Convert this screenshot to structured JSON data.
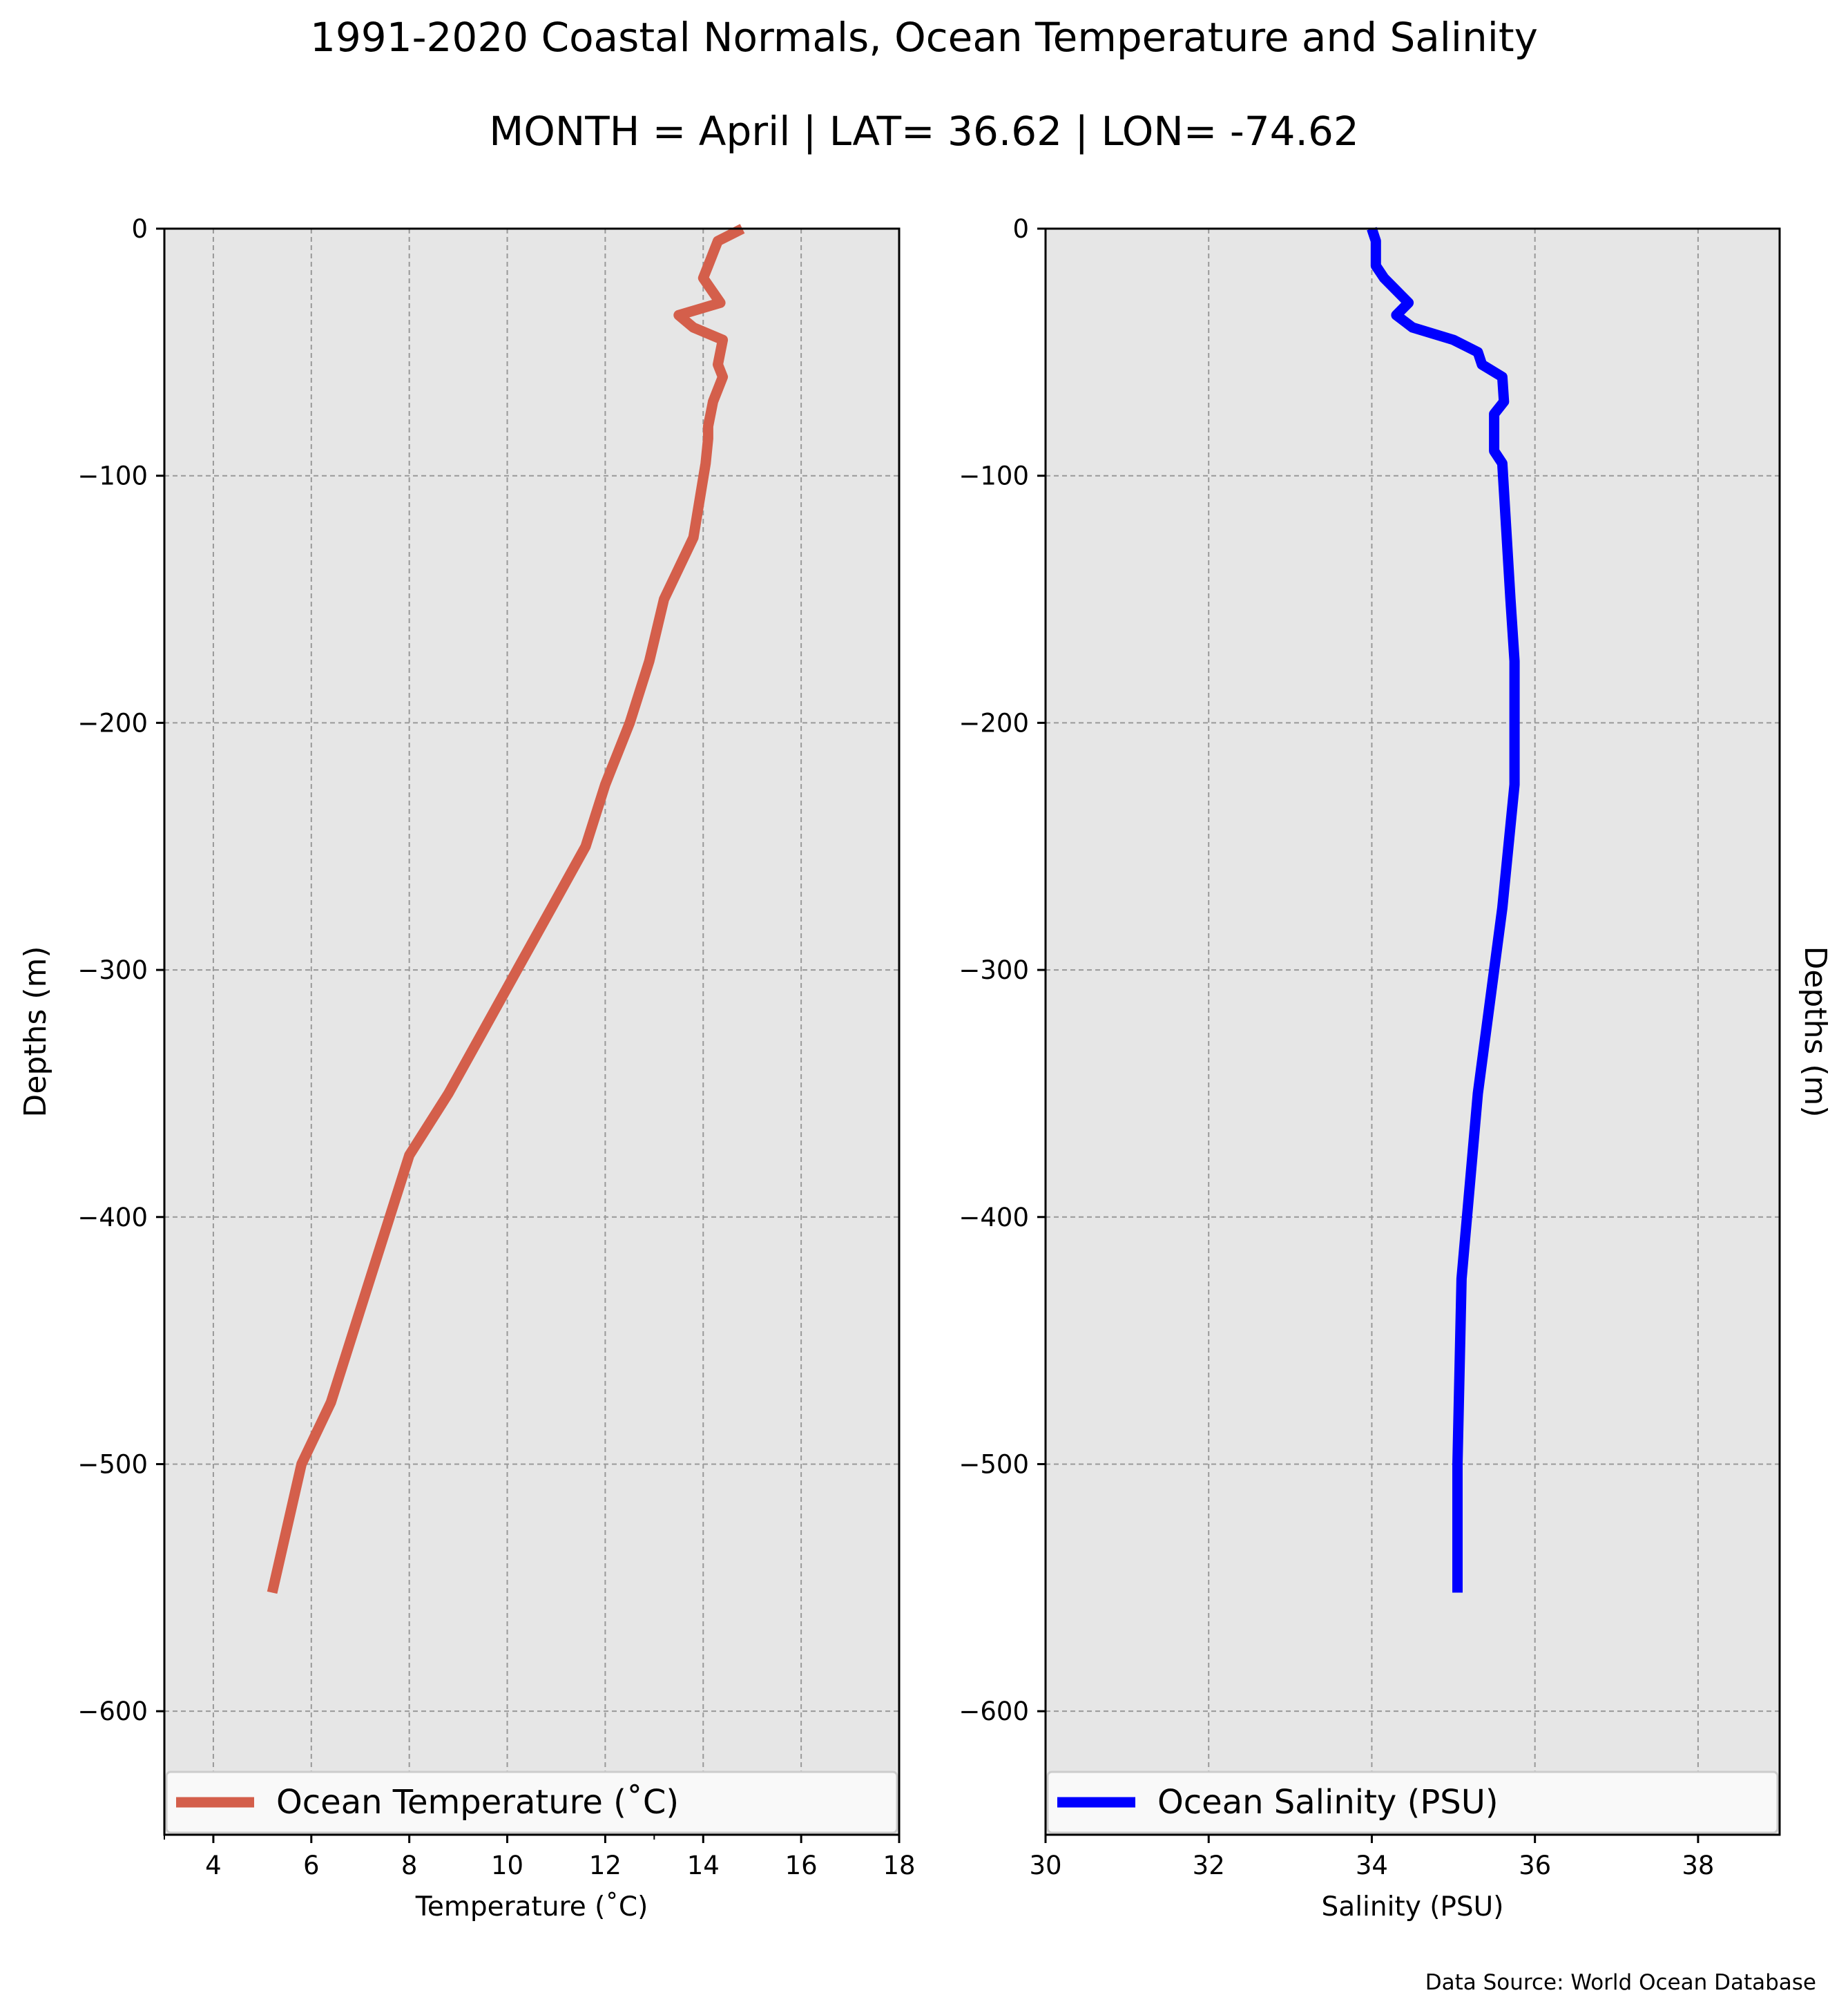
{
  "title": "1991-2020 Coastal Normals, Ocean Temperature and Salinity",
  "subtitle": "MONTH = April | LAT= 36.62 | LON= -74.62",
  "source_note": "Data Source: World Ocean Database",
  "colors": {
    "temperature": "#d45f4b",
    "salinity": "#0000ff",
    "plot_bg": "#e6e6e6",
    "grid": "#999999"
  },
  "chart_data": [
    {
      "type": "line",
      "xlabel": "Temperature ($^\\circ$C)",
      "xlabel_display": "Temperature (˚C)",
      "ylabel": "Depths (m)",
      "ylabel_position": "left",
      "xlim": [
        3,
        18
      ],
      "ylim": [
        -650,
        0
      ],
      "xticks": [
        "4",
        "6",
        "8",
        "10",
        "12",
        "14",
        "16",
        "18"
      ],
      "yticks": [
        "0",
        "−100",
        "−200",
        "−300",
        "−400",
        "−500",
        "−600"
      ],
      "grid": true,
      "legend_position": "bottom",
      "series": [
        {
          "name": "Ocean Temperature (˚C)",
          "color": "#d45f4b",
          "x": [
            14.8,
            14.3,
            14.1,
            14.0,
            14.35,
            13.5,
            13.8,
            14.4,
            14.3,
            14.4,
            14.2,
            14.1,
            14.1,
            14.05,
            13.8,
            13.2,
            12.9,
            12.5,
            12.0,
            11.6,
            10.9,
            10.2,
            9.5,
            8.8,
            8.0,
            7.2,
            6.4,
            5.8,
            5.2
          ],
          "y": [
            0,
            -5,
            -15,
            -20,
            -30,
            -35,
            -40,
            -45,
            -55,
            -60,
            -70,
            -80,
            -85,
            -95,
            -125,
            -150,
            -175,
            -200,
            -225,
            -250,
            -275,
            -300,
            -325,
            -350,
            -375,
            -425,
            -475,
            -500,
            -552
          ]
        }
      ]
    },
    {
      "type": "line",
      "xlabel": "Salinity (PSU)",
      "ylabel": "Depths (m)",
      "ylabel_position": "right",
      "xlim": [
        30,
        39
      ],
      "ylim": [
        -650,
        0
      ],
      "xticks": [
        "30",
        "32",
        "34",
        "36",
        "38"
      ],
      "yticks": [
        "0",
        "−100",
        "−200",
        "−300",
        "−400",
        "−500",
        "−600"
      ],
      "grid": true,
      "legend_position": "bottom",
      "series": [
        {
          "name": "Ocean Salinity (PSU)",
          "color": "#0000ff",
          "x": [
            34.0,
            34.05,
            34.05,
            34.15,
            34.3,
            34.45,
            34.3,
            34.5,
            35.0,
            35.3,
            35.35,
            35.6,
            35.62,
            35.5,
            35.5,
            35.6,
            35.7,
            35.75,
            35.75,
            35.6,
            35.3,
            35.1,
            35.05,
            35.05
          ],
          "y": [
            0,
            -5,
            -15,
            -20,
            -25,
            -30,
            -35,
            -40,
            -45,
            -50,
            -55,
            -60,
            -70,
            -75,
            -90,
            -95,
            -150,
            -175,
            -225,
            -275,
            -350,
            -425,
            -500,
            -552
          ]
        }
      ]
    }
  ]
}
